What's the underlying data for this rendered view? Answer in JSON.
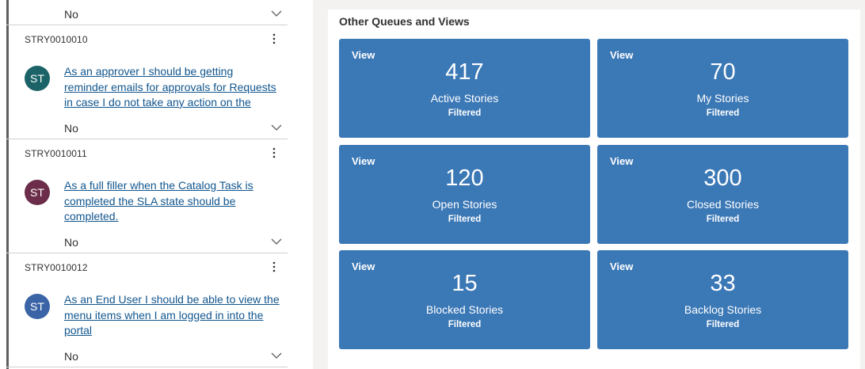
{
  "stories_list": {
    "top_partial": {
      "field_value": "No"
    },
    "items": [
      {
        "id": "STRY0010010",
        "avatar_initials": "ST",
        "avatar_color": "#1b6367",
        "title_lines": [
          "As an approver I should be getting",
          "reminder emails for approvals for Requests",
          "in case I do not take any action on the"
        ],
        "field_value": "No"
      },
      {
        "id": "STRY0010011",
        "avatar_initials": "ST",
        "avatar_color": "#6b2d49",
        "title_lines": [
          "As a full filler when the Catalog Task is",
          "completed the SLA state should be",
          "completed."
        ],
        "field_value": "No"
      },
      {
        "id": "STRY0010012",
        "avatar_initials": "ST",
        "avatar_color": "#3a64a6",
        "title_lines": [
          "As an End User I should be able to view the",
          "menu items when I am logged in into the",
          "portal"
        ],
        "field_value": "No"
      }
    ]
  },
  "queues": {
    "title": "Other Queues and Views",
    "tiles": [
      {
        "view_label": "View",
        "count": "417",
        "label": "Active Stories",
        "sub": "Filtered"
      },
      {
        "view_label": "View",
        "count": "70",
        "label": "My Stories",
        "sub": "Filtered"
      },
      {
        "view_label": "View",
        "count": "120",
        "label": "Open Stories",
        "sub": "Filtered"
      },
      {
        "view_label": "View",
        "count": "300",
        "label": "Closed Stories",
        "sub": "Filtered"
      },
      {
        "view_label": "View",
        "count": "15",
        "label": "Blocked Stories",
        "sub": "Filtered"
      },
      {
        "view_label": "View",
        "count": "33",
        "label": "Backlog Stories",
        "sub": "Filtered"
      }
    ],
    "tile_color": "#3b78b6"
  }
}
